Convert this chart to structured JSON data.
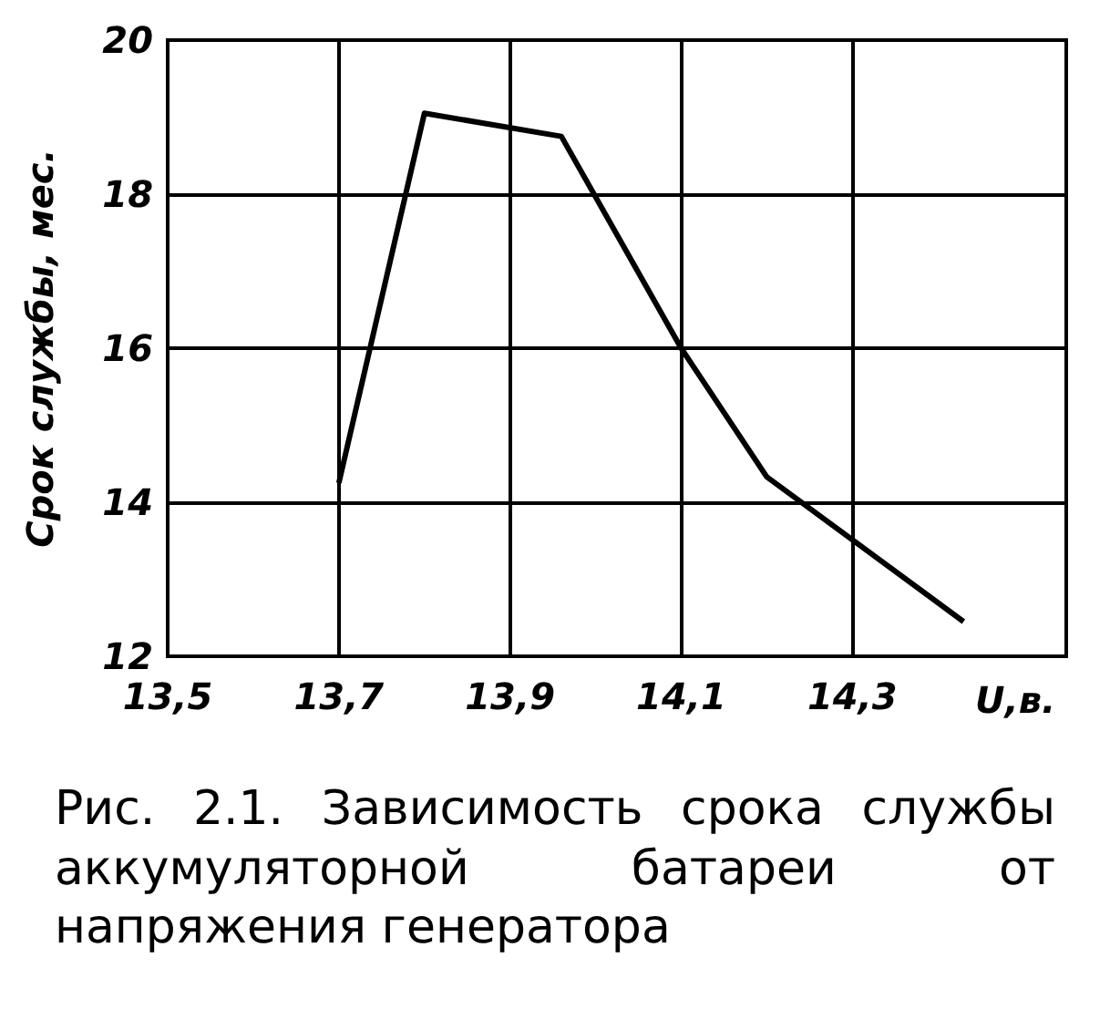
{
  "chart_data": {
    "type": "line",
    "ylabel": "Срок службы, мес.",
    "xlabel": "U,в.",
    "x": [
      13.7,
      13.8,
      13.96,
      14.1,
      14.2,
      14.43
    ],
    "values": [
      14.25,
      19.05,
      18.75,
      16,
      14.33,
      12.45
    ],
    "color": "#000000",
    "marker": "none",
    "line_style": "solid",
    "grid": true,
    "xlim": [
      13.5,
      14.55
    ],
    "xticks": [
      {
        "value": 13.5,
        "label": "13,5"
      },
      {
        "value": 13.7,
        "label": "13,7"
      },
      {
        "value": 13.9,
        "label": "13,9"
      },
      {
        "value": 14.1,
        "label": "14,1"
      },
      {
        "value": 14.3,
        "label": "14,3"
      }
    ],
    "ylim": [
      12,
      20
    ],
    "yticks": [
      12,
      14,
      16,
      18,
      20
    ],
    "annotations": [
      "Рис. 2.1. Зависимость срока службы аккумуляторной батареи от напряжения генератора"
    ]
  }
}
